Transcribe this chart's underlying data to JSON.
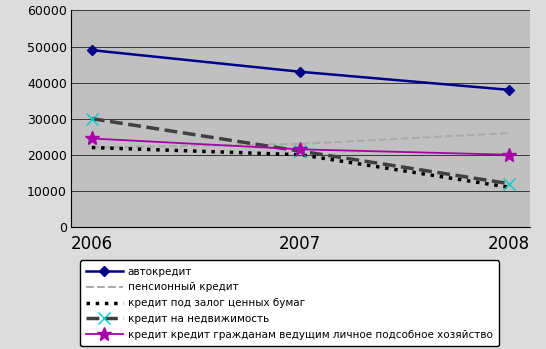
{
  "years": [
    2006,
    2007,
    2008
  ],
  "series": [
    {
      "label": "автокредит",
      "values": [
        49000,
        43000,
        38000
      ],
      "color": "#00008B",
      "linestyle": "-",
      "linewidth": 1.8,
      "marker": "D",
      "markersize": 5,
      "markerfacecolor": "#00008B",
      "markeredgecolor": "#00008B",
      "zorder": 5
    },
    {
      "label": "пенсионный кредит",
      "values": [
        22000,
        23000,
        26000
      ],
      "color": "#AAAAAA",
      "linestyle": "--",
      "linewidth": 1.5,
      "marker": "None",
      "markersize": 0,
      "markerfacecolor": "#AAAAAA",
      "markeredgecolor": "#AAAAAA",
      "zorder": 3
    },
    {
      "label": "кредит под залог ценных бумаг",
      "values": [
        22000,
        20000,
        11000
      ],
      "color": "#000000",
      "linestyle": ":",
      "linewidth": 2.5,
      "marker": "None",
      "markersize": 0,
      "markerfacecolor": "#000000",
      "markeredgecolor": "#000000",
      "zorder": 3
    },
    {
      "label": "кредит на недвижимость",
      "values": [
        30000,
        21000,
        12000
      ],
      "color": "#404040",
      "linestyle": "--",
      "linewidth": 2.5,
      "marker": "x",
      "markersize": 9,
      "markerfacecolor": "#00CCCC",
      "markeredgecolor": "#00CCCC",
      "zorder": 4
    },
    {
      "label": "кредит кредит гражданам ведущим личное подсобное хозяйство",
      "values": [
        24500,
        21500,
        20000
      ],
      "color": "#AA00AA",
      "linestyle": "-",
      "linewidth": 1.3,
      "marker": "*",
      "markersize": 10,
      "markerfacecolor": "#AA00AA",
      "markeredgecolor": "#AA00AA",
      "zorder": 4
    }
  ],
  "ylim": [
    0,
    60000
  ],
  "yticks": [
    0,
    10000,
    20000,
    30000,
    40000,
    50000,
    60000
  ],
  "xticks": [
    2006,
    2007,
    2008
  ],
  "plot_bg_color": "#C0C0C0",
  "fig_bg_color": "#DCDCDC",
  "grid_color": "#000000",
  "tick_fontsize": 9,
  "xtick_fontsize": 12,
  "legend_fontsize": 7.5
}
